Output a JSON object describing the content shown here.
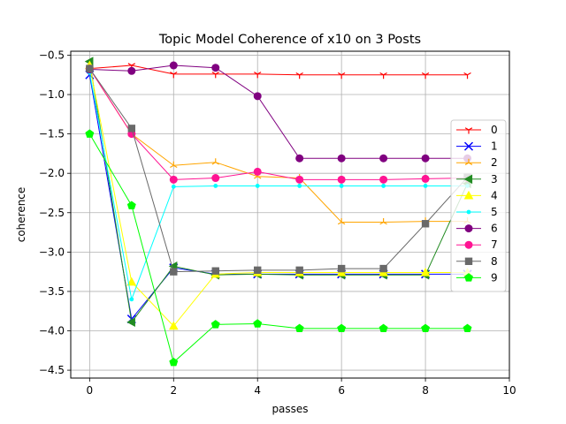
{
  "chart_data": {
    "type": "line",
    "title": "Topic Model Coherence of x10 on 3 Posts",
    "xlabel": "passes",
    "ylabel": "coherence",
    "xlim": [
      -0.45,
      10
    ],
    "ylim": [
      -4.6,
      -0.45
    ],
    "xticks": [
      0,
      2,
      4,
      6,
      8,
      10
    ],
    "xtick_labels": [
      "0",
      "2",
      "4",
      "6",
      "8",
      "10"
    ],
    "yticks": [
      -0.5,
      -1.0,
      -1.5,
      -2.0,
      -2.5,
      -3.0,
      -3.5,
      -4.0,
      -4.5
    ],
    "ytick_labels": [
      "−0.5",
      "−1.0",
      "−1.5",
      "−2.0",
      "−2.5",
      "−3.0",
      "−3.5",
      "−4.0",
      "−4.5"
    ],
    "grid": true,
    "legend_position": "center-right",
    "x": [
      0,
      1,
      2,
      3,
      4,
      5,
      6,
      7,
      8,
      9
    ],
    "series": [
      {
        "name": "0",
        "color": "#ff0000",
        "marker": "tri_down",
        "values": [
          -0.67,
          -0.63,
          -0.74,
          -0.74,
          -0.74,
          -0.75,
          -0.75,
          -0.75,
          -0.75,
          -0.75
        ]
      },
      {
        "name": "1",
        "color": "#0000ff",
        "marker": "x",
        "values": [
          -0.75,
          -3.85,
          -3.2,
          -3.28,
          -3.28,
          -3.28,
          -3.28,
          -3.28,
          -3.28,
          -3.28
        ]
      },
      {
        "name": "2",
        "color": "#ffa500",
        "marker": "tri_up",
        "values": [
          -0.67,
          -1.5,
          -1.9,
          -1.86,
          -2.04,
          -2.06,
          -2.62,
          -2.62,
          -2.61,
          -2.61
        ]
      },
      {
        "name": "3",
        "color": "#228b22",
        "marker": "triangle_left",
        "values": [
          -0.58,
          -3.89,
          -3.18,
          -3.29,
          -3.28,
          -3.29,
          -3.29,
          -3.29,
          -3.29,
          -2.13
        ]
      },
      {
        "name": "4",
        "color": "#ffff00",
        "marker": "triangle_up",
        "values": [
          -0.63,
          -3.38,
          -3.94,
          -3.28,
          -3.26,
          -3.26,
          -3.26,
          -3.26,
          -3.26,
          -3.26
        ]
      },
      {
        "name": "5",
        "color": "#00ffff",
        "marker": "point",
        "values": [
          -0.72,
          -3.6,
          -2.17,
          -2.16,
          -2.16,
          -2.16,
          -2.16,
          -2.16,
          -2.16,
          -2.16
        ]
      },
      {
        "name": "6",
        "color": "#800080",
        "marker": "circle",
        "values": [
          -0.68,
          -0.7,
          -0.63,
          -0.66,
          -1.02,
          -1.81,
          -1.81,
          -1.81,
          -1.81,
          -1.81
        ]
      },
      {
        "name": "7",
        "color": "#ff1493",
        "marker": "circle",
        "values": [
          -0.67,
          -1.5,
          -2.08,
          -2.06,
          -1.98,
          -2.08,
          -2.08,
          -2.08,
          -2.07,
          -2.06
        ]
      },
      {
        "name": "8",
        "color": "#696969",
        "marker": "square",
        "values": [
          -0.67,
          -1.43,
          -3.25,
          -3.24,
          -3.23,
          -3.23,
          -3.21,
          -3.21,
          -2.64,
          -2.05
        ]
      },
      {
        "name": "9",
        "color": "#00ff00",
        "marker": "pentagon",
        "values": [
          -1.5,
          -2.41,
          -4.4,
          -3.92,
          -3.91,
          -3.97,
          -3.97,
          -3.97,
          -3.97,
          -3.97
        ]
      }
    ]
  }
}
